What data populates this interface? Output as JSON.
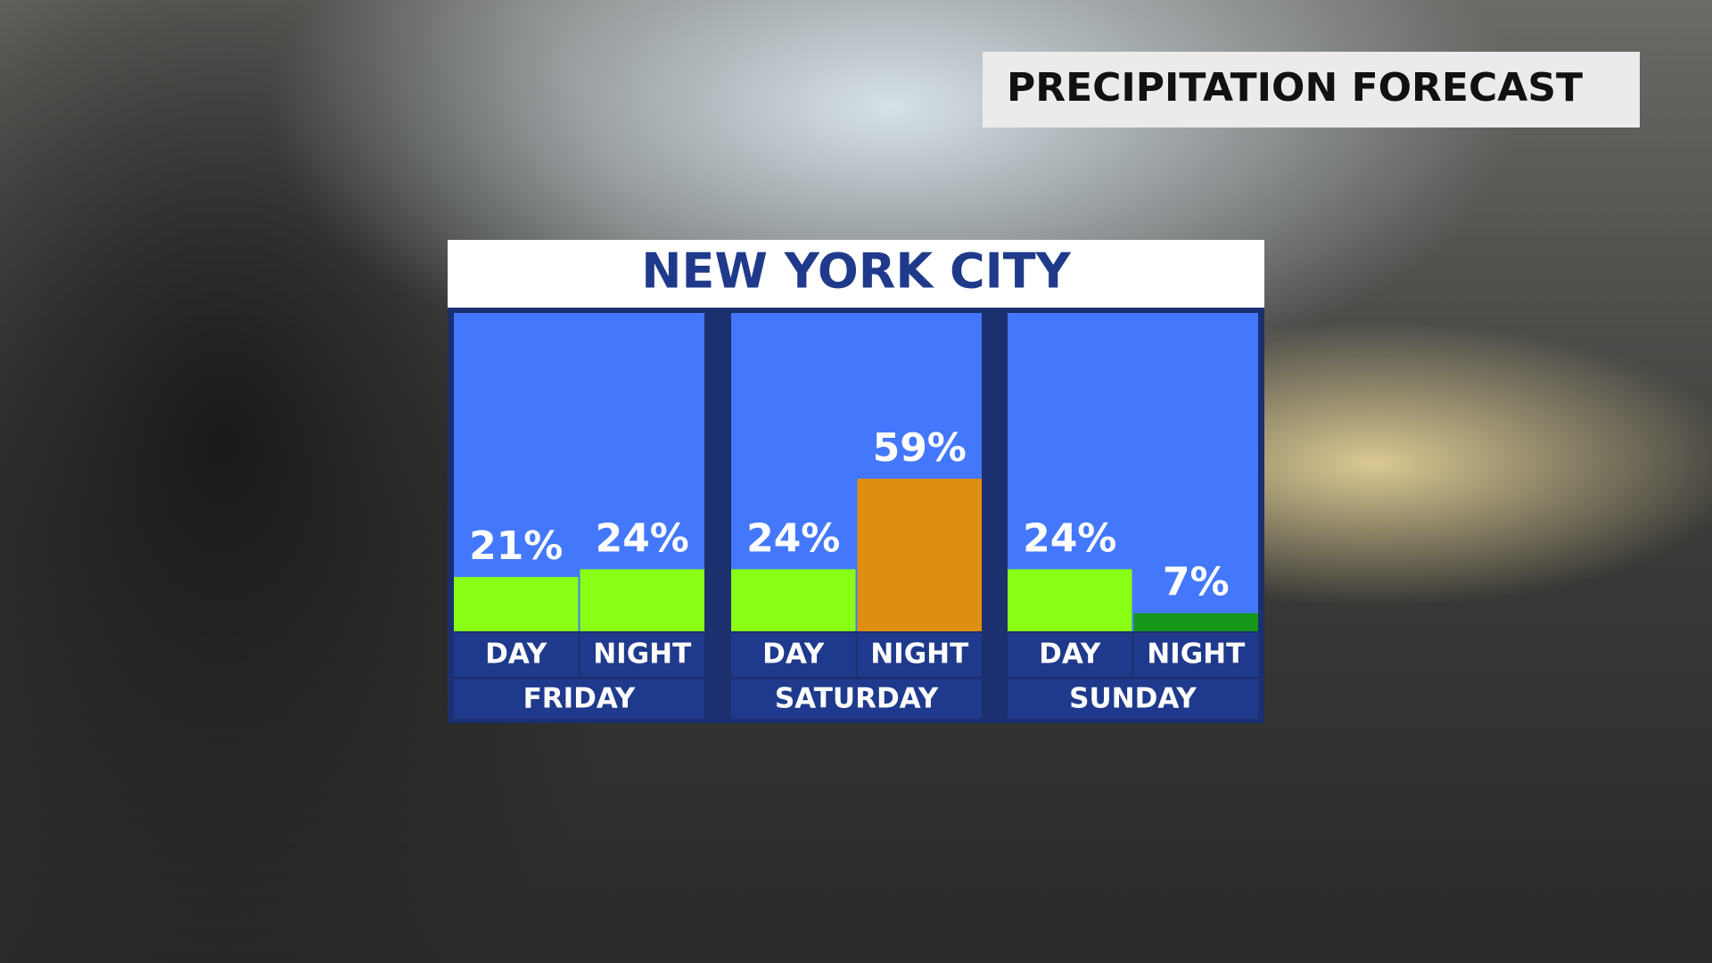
{
  "header": {
    "title": "PRECIPITATION FORECAST"
  },
  "chart_data": {
    "type": "bar",
    "title": "NEW YORK CITY",
    "groups": [
      {
        "name": "FRIDAY",
        "categories": [
          "DAY",
          "NIGHT"
        ],
        "values": [
          21,
          24
        ],
        "value_labels": [
          "21%",
          "24%"
        ],
        "colors": [
          "#88ff14",
          "#88ff14"
        ]
      },
      {
        "name": "SATURDAY",
        "categories": [
          "DAY",
          "NIGHT"
        ],
        "values": [
          24,
          59
        ],
        "value_labels": [
          "24%",
          "59%"
        ],
        "colors": [
          "#88ff14",
          "#df8f0f"
        ]
      },
      {
        "name": "SUNDAY",
        "categories": [
          "DAY",
          "NIGHT"
        ],
        "values": [
          24,
          7
        ],
        "value_labels": [
          "24%",
          "7%"
        ],
        "colors": [
          "#88ff14",
          "#16981b"
        ]
      }
    ]
  }
}
